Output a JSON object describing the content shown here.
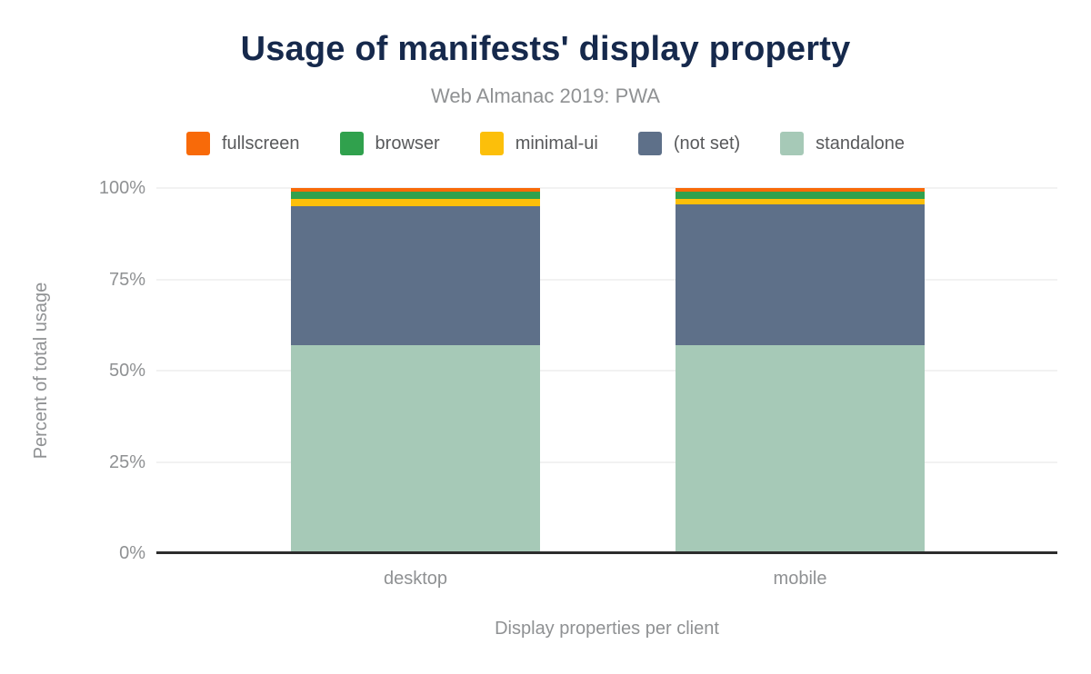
{
  "header": {
    "title": "Usage of manifests' display property",
    "subtitle": "Web Almanac 2019: PWA"
  },
  "colors": {
    "title_text": "#16294c",
    "muted_text": "#8f9193",
    "legend_text": "#58595b",
    "gridline": "#f2f2f2",
    "axis_line": "#2d2d2d",
    "background": "#ffffff"
  },
  "chart_data": {
    "type": "bar",
    "stacked": true,
    "stack_unit": "percent",
    "title": "Usage of manifests' display property",
    "subtitle": "Web Almanac 2019: PWA",
    "xlabel": "Display properties per client",
    "ylabel": "Percent of total usage",
    "categories": [
      "desktop",
      "mobile"
    ],
    "series": [
      {
        "name": "fullscreen",
        "color": "#f86a09",
        "values": [
          1,
          1
        ]
      },
      {
        "name": "browser",
        "color": "#30a14d",
        "values": [
          2,
          2
        ]
      },
      {
        "name": "minimal-ui",
        "color": "#fcbf0a",
        "values": [
          2,
          1.4
        ]
      },
      {
        "name": "(not set)",
        "color": "#5e7089",
        "values": [
          38,
          38.6
        ]
      },
      {
        "name": "standalone",
        "color": "#a6c9b7",
        "values": [
          57,
          57
        ]
      }
    ],
    "stack_order_bottom_to_top": [
      "standalone",
      "(not set)",
      "minimal-ui",
      "browser",
      "fullscreen"
    ],
    "yticks": [
      "0%",
      "25%",
      "50%",
      "75%",
      "100%"
    ],
    "ytick_values": [
      0,
      25,
      50,
      75,
      100
    ],
    "ylim": [
      0,
      100
    ],
    "legend_position": "top",
    "grid": true
  }
}
